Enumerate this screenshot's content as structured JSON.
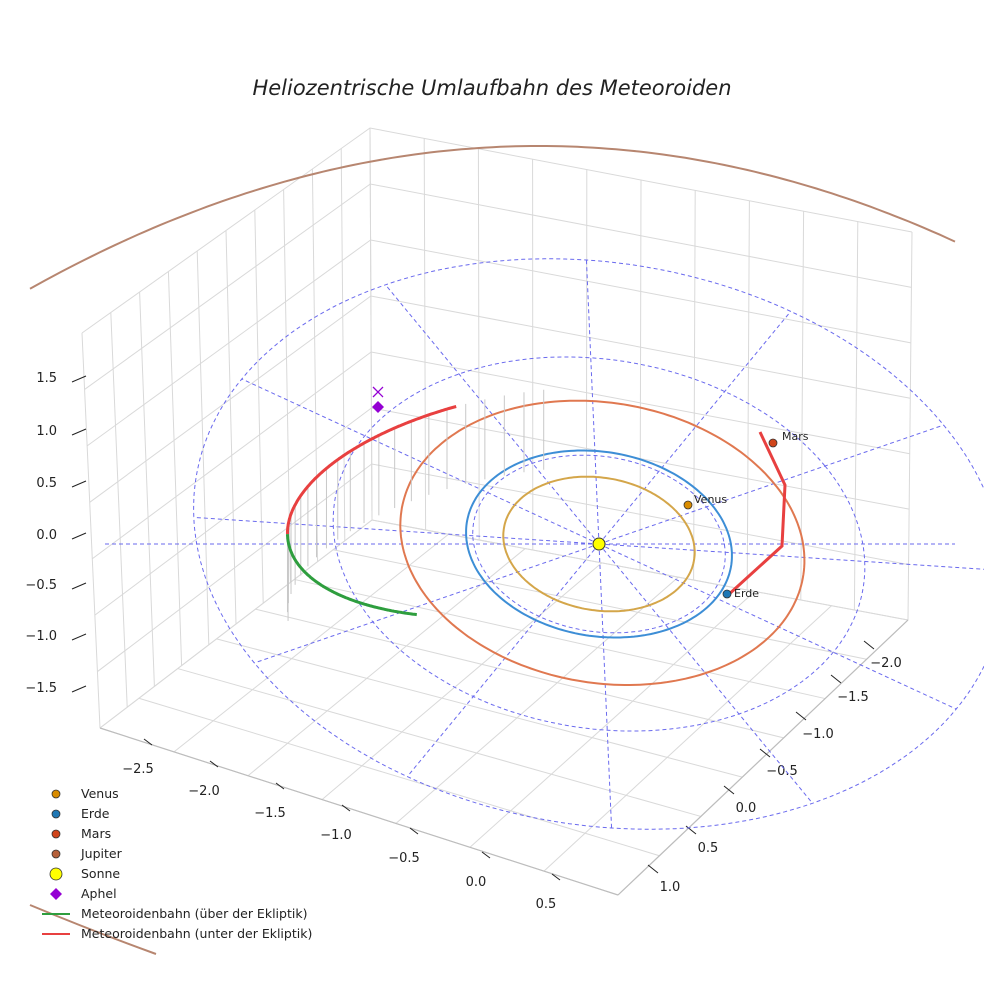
{
  "chart_data": {
    "type": "3d-orbit-plot",
    "title": "Heliozentrische Umlaufbahn des Meteoroiden",
    "axes": {
      "x_ticks": [
        "−2.5",
        "−2.0",
        "−1.5",
        "−1.0",
        "−0.5",
        "0.0",
        "0.5"
      ],
      "y_ticks": [
        "−2.0",
        "−1.5",
        "−1.0",
        "−0.5",
        "0.0",
        "0.5",
        "1.0"
      ],
      "z_ticks": [
        "1.5",
        "1.0",
        "0.5",
        "0.0",
        "−0.5",
        "−1.0",
        "−1.5"
      ]
    },
    "bodies": [
      {
        "name": "Venus",
        "label": "Venus",
        "orbit_radius_au": 0.72,
        "color": "#d4a64a",
        "marker_color": "#d98c00"
      },
      {
        "name": "Erde",
        "label": "Erde",
        "orbit_radius_au": 1.0,
        "color": "#3d8ed6",
        "marker_color": "#1f77b4"
      },
      {
        "name": "Mars",
        "label": "Mars",
        "orbit_radius_au": 1.52,
        "color": "#e07850",
        "marker_color": "#d0451b"
      },
      {
        "name": "Jupiter",
        "orbit_radius_au": 5.2,
        "color": "#b78670",
        "marker_color": "#b5603a"
      }
    ],
    "sun": {
      "name": "Sonne",
      "color": "#ffff00"
    },
    "meteoroid_orbit": {
      "aphel_label": "Aphel",
      "aphel_color": "#9400d3",
      "above_color": "#2e9e3e",
      "below_color": "#e84040"
    },
    "reference_grid": {
      "color": "#6a6aee",
      "style": "dashed",
      "rings_au": [
        1.0,
        2.0,
        3.0
      ]
    },
    "legend": [
      {
        "label": "Venus",
        "type": "dot",
        "color": "#d98c00"
      },
      {
        "label": "Erde",
        "type": "dot",
        "color": "#1f77b4"
      },
      {
        "label": "Mars",
        "type": "dot",
        "color": "#d0451b"
      },
      {
        "label": "Jupiter",
        "type": "dot",
        "color": "#b5603a"
      },
      {
        "label": "Sonne",
        "type": "bigdot",
        "color": "#ffff00"
      },
      {
        "label": "Aphel",
        "type": "diamond",
        "color": "#9400d3"
      },
      {
        "label": "Meteoroidenbahn (über der Ekliptik)",
        "type": "line",
        "color": "#2e9e3e"
      },
      {
        "label": "Meteoroidenbahn (unter der Ekliptik)",
        "type": "line",
        "color": "#e84040"
      }
    ]
  }
}
